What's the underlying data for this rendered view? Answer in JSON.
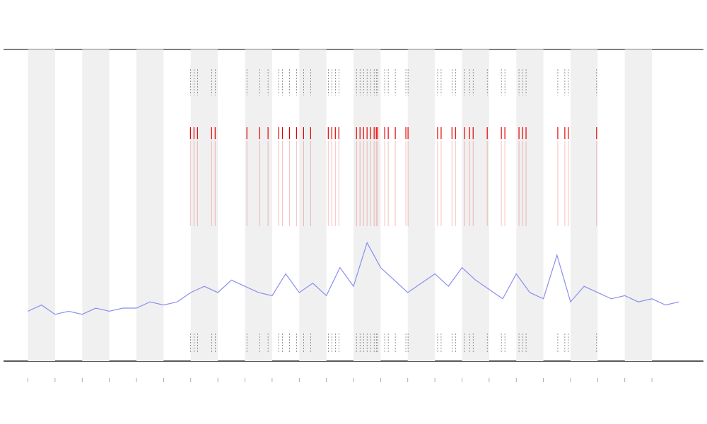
{
  "chart_data": {
    "type": "line",
    "xlim": [
      -0.9,
      24.9
    ],
    "ylim": [
      0,
      100
    ],
    "xticks": [
      0,
      1,
      2,
      3,
      4,
      5,
      6,
      7,
      8,
      9,
      10,
      11,
      12,
      13,
      14,
      15,
      16,
      17,
      18,
      19,
      20,
      21,
      22,
      23
    ],
    "bands": [
      [
        0,
        1
      ],
      [
        2,
        3
      ],
      [
        4,
        5
      ],
      [
        6,
        7
      ],
      [
        8,
        9
      ],
      [
        10,
        11
      ],
      [
        12,
        13
      ],
      [
        14,
        15
      ],
      [
        16,
        17
      ],
      [
        18,
        19
      ],
      [
        20,
        21
      ],
      [
        22,
        23
      ]
    ],
    "band_color": "#f0f0f0",
    "x": [
      0,
      0.5,
      1,
      1.5,
      2,
      2.5,
      3,
      3.5,
      4,
      4.5,
      5,
      5.5,
      6,
      6.5,
      7,
      7.5,
      8,
      8.5,
      9,
      9.5,
      10,
      10.5,
      11,
      11.5,
      12,
      12.5,
      13,
      13.5,
      14,
      14.5,
      15,
      15.5,
      16,
      16.5,
      17,
      17.5,
      18,
      18.5,
      19,
      19.5,
      20,
      20.5,
      21,
      21.5,
      22,
      22.5,
      23,
      23.5,
      24
    ],
    "series": [
      {
        "color": "#8a8ef0",
        "values": [
          16,
          18,
          15,
          16,
          15,
          17,
          16,
          17,
          17,
          19,
          18,
          19,
          22,
          24,
          22,
          26,
          24,
          22,
          21,
          28,
          22,
          25,
          21,
          30,
          24,
          38,
          30,
          26,
          22,
          25,
          28,
          24,
          30,
          26,
          23,
          20,
          28,
          22,
          20,
          34,
          19,
          24,
          22,
          20,
          21,
          19,
          20,
          18,
          19
        ]
      }
    ],
    "events": [
      5.99,
      6.12,
      6.25,
      6.77,
      6.9,
      8.07,
      8.54,
      8.85,
      9.24,
      9.38,
      9.64,
      9.9,
      10.16,
      10.42,
      11.07,
      11.2,
      11.33,
      11.46,
      12.11,
      12.24,
      12.37,
      12.5,
      12.63,
      12.76,
      12.84,
      12.89,
      13.15,
      13.28,
      13.54,
      13.93,
      14.01,
      15.1,
      15.23,
      15.63,
      15.76,
      16.09,
      16.28,
      16.41,
      16.93,
      17.45,
      17.58,
      18.1,
      18.23,
      18.36,
      19.53,
      19.79,
      19.92,
      20.96
    ],
    "event_color": "#e60000",
    "tick_color": "#555555"
  }
}
